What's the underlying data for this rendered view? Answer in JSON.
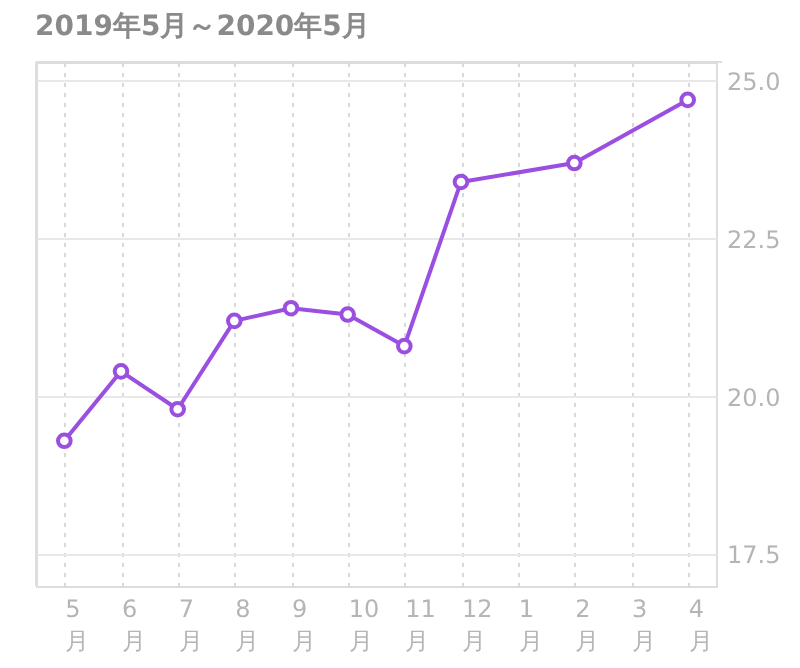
{
  "chart_data": {
    "type": "line",
    "title": "2019年5月～2020年5月",
    "categories": [
      "5月",
      "6月",
      "7月",
      "8月",
      "9月",
      "10月",
      "11月",
      "12月",
      "1月",
      "2月",
      "3月",
      "4月"
    ],
    "series": [
      {
        "color": "#9b4fe0",
        "values": [
          19.3,
          20.4,
          19.8,
          21.2,
          21.4,
          21.3,
          20.8,
          23.4,
          null,
          23.7,
          null,
          24.7
        ]
      }
    ],
    "ylim": [
      17.0,
      25.3
    ],
    "yticks": [
      {
        "value": 17.5,
        "label": "17.5"
      },
      {
        "value": 20,
        "label": "20.0"
      },
      {
        "value": 22.5,
        "label": "22.5"
      },
      {
        "value": 25,
        "label": "25.0"
      }
    ],
    "grid": true,
    "marker": "circle",
    "line_style": "solid"
  }
}
